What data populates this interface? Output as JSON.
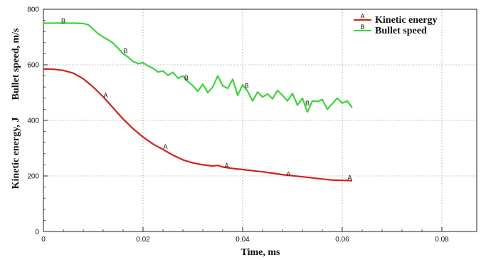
{
  "chart_data": {
    "type": "line",
    "xlabel": "Time, ms",
    "ylabel_lines": [
      "Bullet speed, m/s",
      "Kinetic energy, J"
    ],
    "xlim": [
      0,
      0.087
    ],
    "ylim": [
      0,
      800
    ],
    "x_ticks": [
      {
        "value": 0,
        "label": "0"
      },
      {
        "value": 0.02,
        "label": "0.02"
      },
      {
        "value": 0.04,
        "label": "0.04"
      },
      {
        "value": 0.06,
        "label": "0.06"
      },
      {
        "value": 0.08,
        "label": "0.08"
      }
    ],
    "y_ticks": [
      {
        "value": 0,
        "label": "0"
      },
      {
        "value": 200,
        "label": "200"
      },
      {
        "value": 400,
        "label": "400"
      },
      {
        "value": 600,
        "label": "600"
      },
      {
        "value": 800,
        "label": "800"
      }
    ],
    "grid": true,
    "legend_position": "top-right",
    "series": [
      {
        "name": "Kinetic energy",
        "marker": "A",
        "color": "#d42020",
        "x": [
          0,
          0.002,
          0.004,
          0.006,
          0.008,
          0.01,
          0.012,
          0.014,
          0.016,
          0.018,
          0.02,
          0.022,
          0.024,
          0.026,
          0.028,
          0.03,
          0.032,
          0.034,
          0.035,
          0.036,
          0.038,
          0.04,
          0.044,
          0.048,
          0.052,
          0.056,
          0.058,
          0.06,
          0.062
        ],
        "y": [
          585,
          584,
          580,
          570,
          550,
          520,
          485,
          445,
          405,
          370,
          340,
          315,
          295,
          275,
          258,
          247,
          240,
          236,
          238,
          232,
          227,
          223,
          215,
          205,
          197,
          189,
          185,
          184,
          183
        ],
        "marker_points": [
          {
            "x": 0.0125,
            "y": 490,
            "label": "A"
          },
          {
            "x": 0.0245,
            "y": 305,
            "label": "A"
          },
          {
            "x": 0.0368,
            "y": 237,
            "label": "A"
          },
          {
            "x": 0.0492,
            "y": 207,
            "label": "A"
          },
          {
            "x": 0.0615,
            "y": 193,
            "label": "A"
          }
        ]
      },
      {
        "name": "Bullet speed",
        "marker": "B",
        "color": "#3ed33a",
        "x": [
          0,
          0.002,
          0.004,
          0.006,
          0.008,
          0.009,
          0.01,
          0.011,
          0.012,
          0.013,
          0.014,
          0.015,
          0.016,
          0.017,
          0.018,
          0.019,
          0.02,
          0.021,
          0.022,
          0.023,
          0.024,
          0.025,
          0.026,
          0.027,
          0.028,
          0.029,
          0.03,
          0.031,
          0.032,
          0.033,
          0.034,
          0.035,
          0.036,
          0.037,
          0.038,
          0.039,
          0.04,
          0.041,
          0.042,
          0.043,
          0.044,
          0.045,
          0.046,
          0.047,
          0.048,
          0.049,
          0.05,
          0.051,
          0.052,
          0.053,
          0.054,
          0.055,
          0.056,
          0.057,
          0.058,
          0.059,
          0.06,
          0.061,
          0.062
        ],
        "y": [
          750,
          750,
          750,
          750,
          749,
          744,
          728,
          712,
          700,
          690,
          678,
          660,
          640,
          628,
          612,
          604,
          608,
          596,
          588,
          574,
          578,
          562,
          573,
          552,
          560,
          540,
          525,
          505,
          530,
          500,
          520,
          560,
          525,
          515,
          548,
          490,
          528,
          505,
          470,
          502,
          484,
          495,
          478,
          508,
          490,
          470,
          497,
          455,
          480,
          430,
          470,
          468,
          475,
          440,
          460,
          480,
          462,
          470,
          445
        ],
        "marker_points": [
          {
            "x": 0.004,
            "y": 758,
            "label": "B"
          },
          {
            "x": 0.0165,
            "y": 650,
            "label": "B"
          },
          {
            "x": 0.0287,
            "y": 553,
            "label": "B"
          },
          {
            "x": 0.0408,
            "y": 524,
            "label": "B"
          },
          {
            "x": 0.053,
            "y": 462,
            "label": "B"
          }
        ]
      }
    ]
  }
}
